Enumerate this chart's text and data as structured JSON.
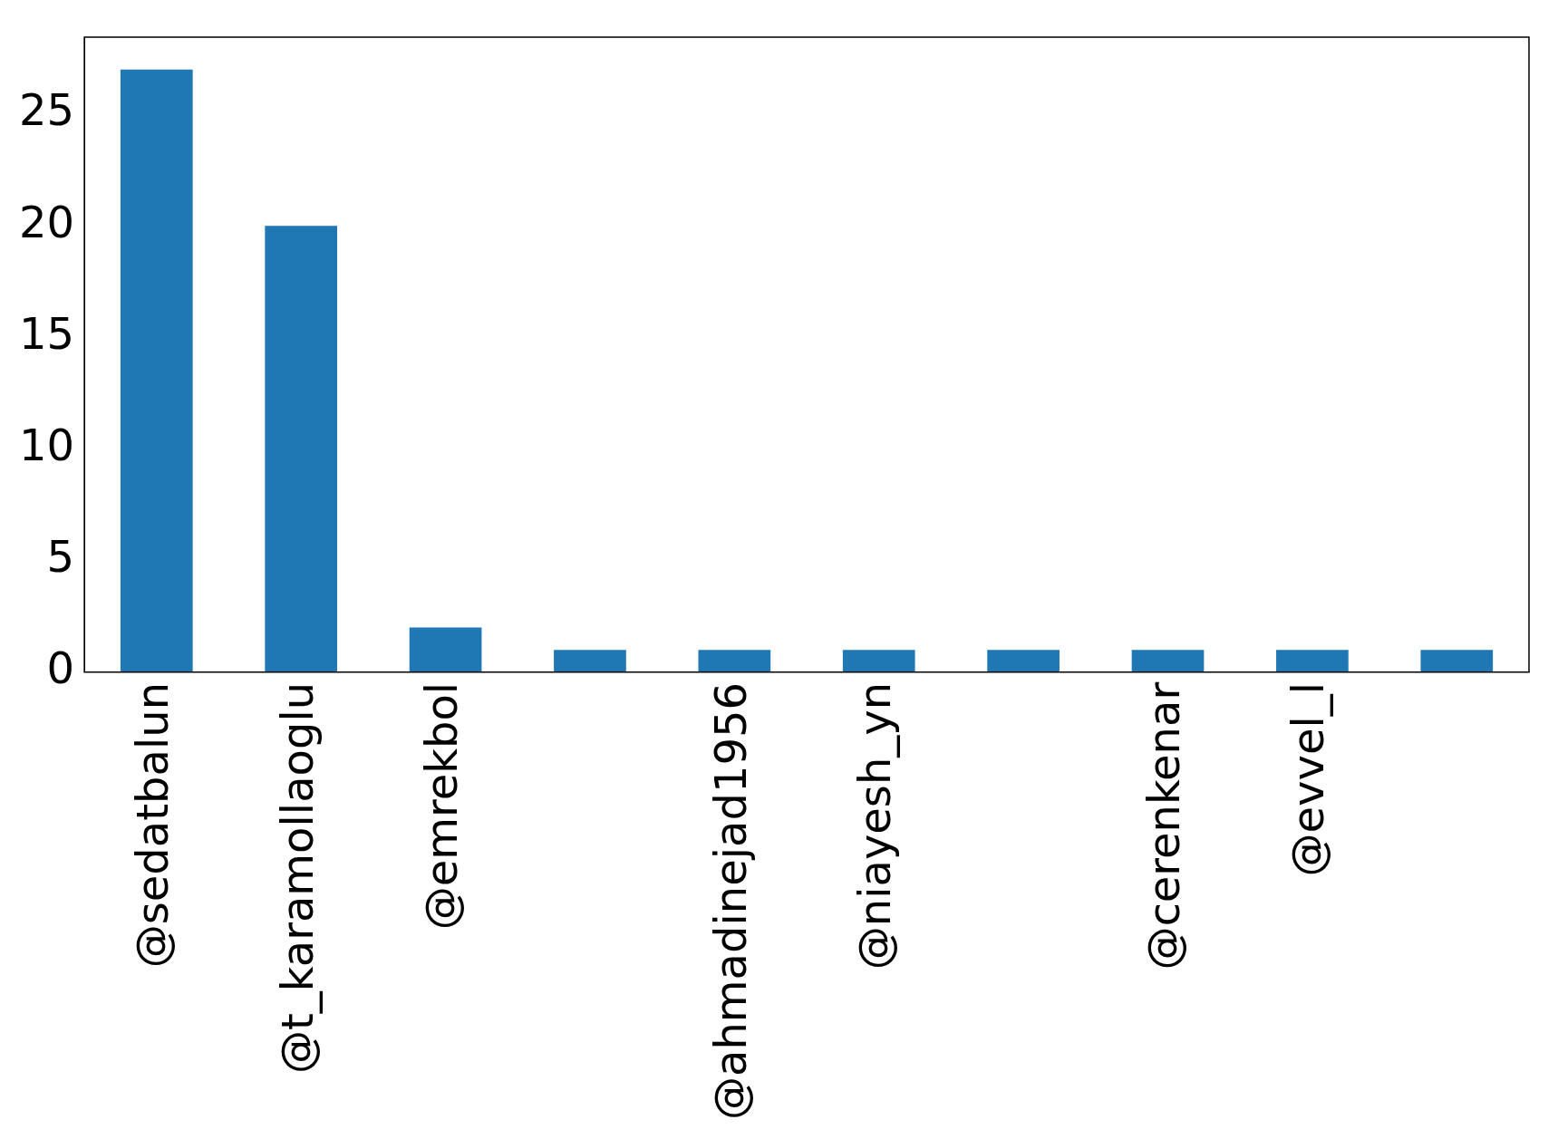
{
  "chart_data": {
    "type": "bar",
    "categories": [
      "@sedatbalun",
      "@t_karamollaoglu",
      "@emrekbol",
      null,
      "@ahmadinejad1956",
      "@niayesh_yn",
      null,
      "@cerenkenar",
      "@evvel_l",
      null
    ],
    "values": [
      27,
      20,
      2,
      1,
      1,
      1,
      1,
      1,
      1,
      1
    ],
    "color": "#1f77b4",
    "ylim": [
      0,
      28.45
    ],
    "yticks": [
      0,
      5,
      10,
      15,
      20,
      25
    ],
    "grid": false,
    "legend": false
  }
}
